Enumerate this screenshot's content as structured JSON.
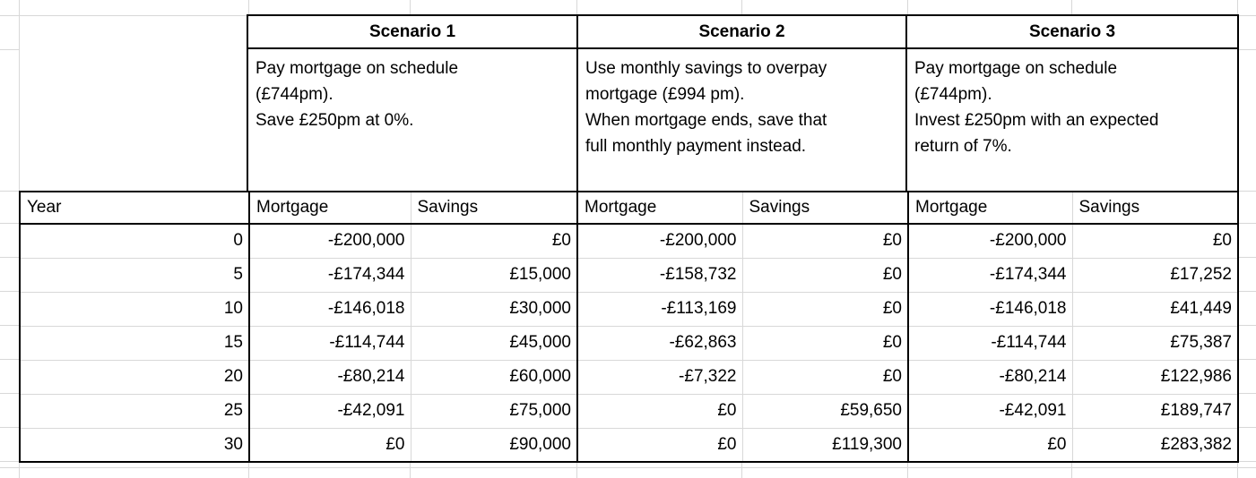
{
  "sheet": {
    "scenarios": [
      {
        "title": "Scenario 1",
        "description": "Pay mortgage on schedule\n(£744pm).\nSave £250pm at 0%."
      },
      {
        "title": "Scenario 2",
        "description": "Use monthly savings to overpay\nmortgage (£994 pm).\nWhen mortgage ends, save that\nfull monthly payment instead."
      },
      {
        "title": "Scenario 3",
        "description": "Pay mortgage on schedule\n(£744pm).\nInvest £250pm with an expected\nreturn of 7%."
      }
    ],
    "columns": [
      "Year",
      "Mortgage",
      "Savings",
      "Mortgage",
      "Savings",
      "Mortgage",
      "Savings"
    ],
    "rows": [
      [
        "0",
        "-£200,000",
        "£0",
        "-£200,000",
        "£0",
        "-£200,000",
        "£0"
      ],
      [
        "5",
        "-£174,344",
        "£15,000",
        "-£158,732",
        "£0",
        "-£174,344",
        "£17,252"
      ],
      [
        "10",
        "-£146,018",
        "£30,000",
        "-£113,169",
        "£0",
        "-£146,018",
        "£41,449"
      ],
      [
        "15",
        "-£114,744",
        "£45,000",
        "-£62,863",
        "£0",
        "-£114,744",
        "£75,387"
      ],
      [
        "20",
        "-£80,214",
        "£60,000",
        "-£7,322",
        "£0",
        "-£80,214",
        "£122,986"
      ],
      [
        "25",
        "-£42,091",
        "£75,000",
        "£0",
        "£59,650",
        "-£42,091",
        "£189,747"
      ],
      [
        "30",
        "£0",
        "£90,000",
        "£0",
        "£119,300",
        "£0",
        "£283,382"
      ]
    ]
  },
  "colors": {
    "border": "#000000",
    "gridline": "#d8d8d8",
    "background": "#ffffff",
    "text": "#000000"
  }
}
